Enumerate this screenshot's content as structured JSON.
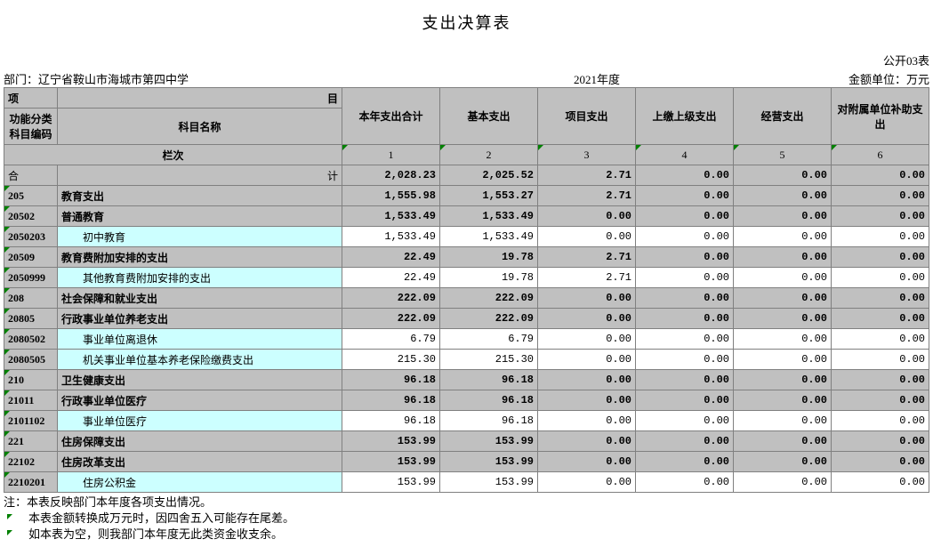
{
  "title": "支出决算表",
  "form_code": "公开03表",
  "meta": {
    "dept_label": "部门：",
    "dept_value": "辽宁省鞍山市海城市第四中学",
    "year": "2021年度",
    "unit": "金额单位：万元"
  },
  "headers": {
    "xiang": "项",
    "mu": "目",
    "code": "功能分类科目编码",
    "name": "科目名称",
    "col1": "本年支出合计",
    "col2": "基本支出",
    "col3": "项目支出",
    "col4": "上缴上级支出",
    "col5": "经营支出",
    "col6": "对附属单位补助支出",
    "lanci": "栏次",
    "n1": "1",
    "n2": "2",
    "n3": "3",
    "n4": "4",
    "n5": "5",
    "n6": "6"
  },
  "total_row": {
    "he": "合",
    "ji": "计",
    "v": [
      "2,028.23",
      "2,025.52",
      "2.71",
      "0.00",
      "0.00",
      "0.00"
    ]
  },
  "rows": [
    {
      "code": "205",
      "name": "教育支出",
      "bold": true,
      "v": [
        "1,555.98",
        "1,553.27",
        "2.71",
        "0.00",
        "0.00",
        "0.00"
      ]
    },
    {
      "code": "20502",
      "name": "普通教育",
      "bold": true,
      "v": [
        "1,533.49",
        "1,533.49",
        "0.00",
        "0.00",
        "0.00",
        "0.00"
      ]
    },
    {
      "code": "2050203",
      "name": "初中教育",
      "bold": false,
      "indent": 2,
      "v": [
        "1,533.49",
        "1,533.49",
        "0.00",
        "0.00",
        "0.00",
        "0.00"
      ]
    },
    {
      "code": "20509",
      "name": "教育费附加安排的支出",
      "bold": true,
      "v": [
        "22.49",
        "19.78",
        "2.71",
        "0.00",
        "0.00",
        "0.00"
      ]
    },
    {
      "code": "2050999",
      "name": "其他教育费附加安排的支出",
      "bold": false,
      "indent": 2,
      "v": [
        "22.49",
        "19.78",
        "2.71",
        "0.00",
        "0.00",
        "0.00"
      ]
    },
    {
      "code": "208",
      "name": "社会保障和就业支出",
      "bold": true,
      "v": [
        "222.09",
        "222.09",
        "0.00",
        "0.00",
        "0.00",
        "0.00"
      ]
    },
    {
      "code": "20805",
      "name": "行政事业单位养老支出",
      "bold": true,
      "v": [
        "222.09",
        "222.09",
        "0.00",
        "0.00",
        "0.00",
        "0.00"
      ]
    },
    {
      "code": "2080502",
      "name": "事业单位离退休",
      "bold": false,
      "indent": 2,
      "v": [
        "6.79",
        "6.79",
        "0.00",
        "0.00",
        "0.00",
        "0.00"
      ]
    },
    {
      "code": "2080505",
      "name": "机关事业单位基本养老保险缴费支出",
      "bold": false,
      "indent": 2,
      "v": [
        "215.30",
        "215.30",
        "0.00",
        "0.00",
        "0.00",
        "0.00"
      ]
    },
    {
      "code": "210",
      "name": "卫生健康支出",
      "bold": true,
      "v": [
        "96.18",
        "96.18",
        "0.00",
        "0.00",
        "0.00",
        "0.00"
      ]
    },
    {
      "code": "21011",
      "name": "行政事业单位医疗",
      "bold": true,
      "v": [
        "96.18",
        "96.18",
        "0.00",
        "0.00",
        "0.00",
        "0.00"
      ]
    },
    {
      "code": "2101102",
      "name": "事业单位医疗",
      "bold": false,
      "indent": 2,
      "v": [
        "96.18",
        "96.18",
        "0.00",
        "0.00",
        "0.00",
        "0.00"
      ]
    },
    {
      "code": "221",
      "name": "住房保障支出",
      "bold": true,
      "v": [
        "153.99",
        "153.99",
        "0.00",
        "0.00",
        "0.00",
        "0.00"
      ]
    },
    {
      "code": "22102",
      "name": "住房改革支出",
      "bold": true,
      "v": [
        "153.99",
        "153.99",
        "0.00",
        "0.00",
        "0.00",
        "0.00"
      ]
    },
    {
      "code": "2210201",
      "name": "住房公积金",
      "bold": false,
      "indent": 2,
      "v": [
        "153.99",
        "153.99",
        "0.00",
        "0.00",
        "0.00",
        "0.00"
      ]
    }
  ],
  "notes": {
    "l1": "注：本表反映部门本年度各项支出情况。",
    "l2": "本表金额转换成万元时，因四舍五入可能存在尾差。",
    "l3": "如本表为空，则我部门本年度无此类资金收支余。"
  },
  "colors": {
    "header_bg": "#c0c0c0",
    "light_bg": "#ccffff",
    "border": "#808080",
    "triangle": "#008000"
  }
}
